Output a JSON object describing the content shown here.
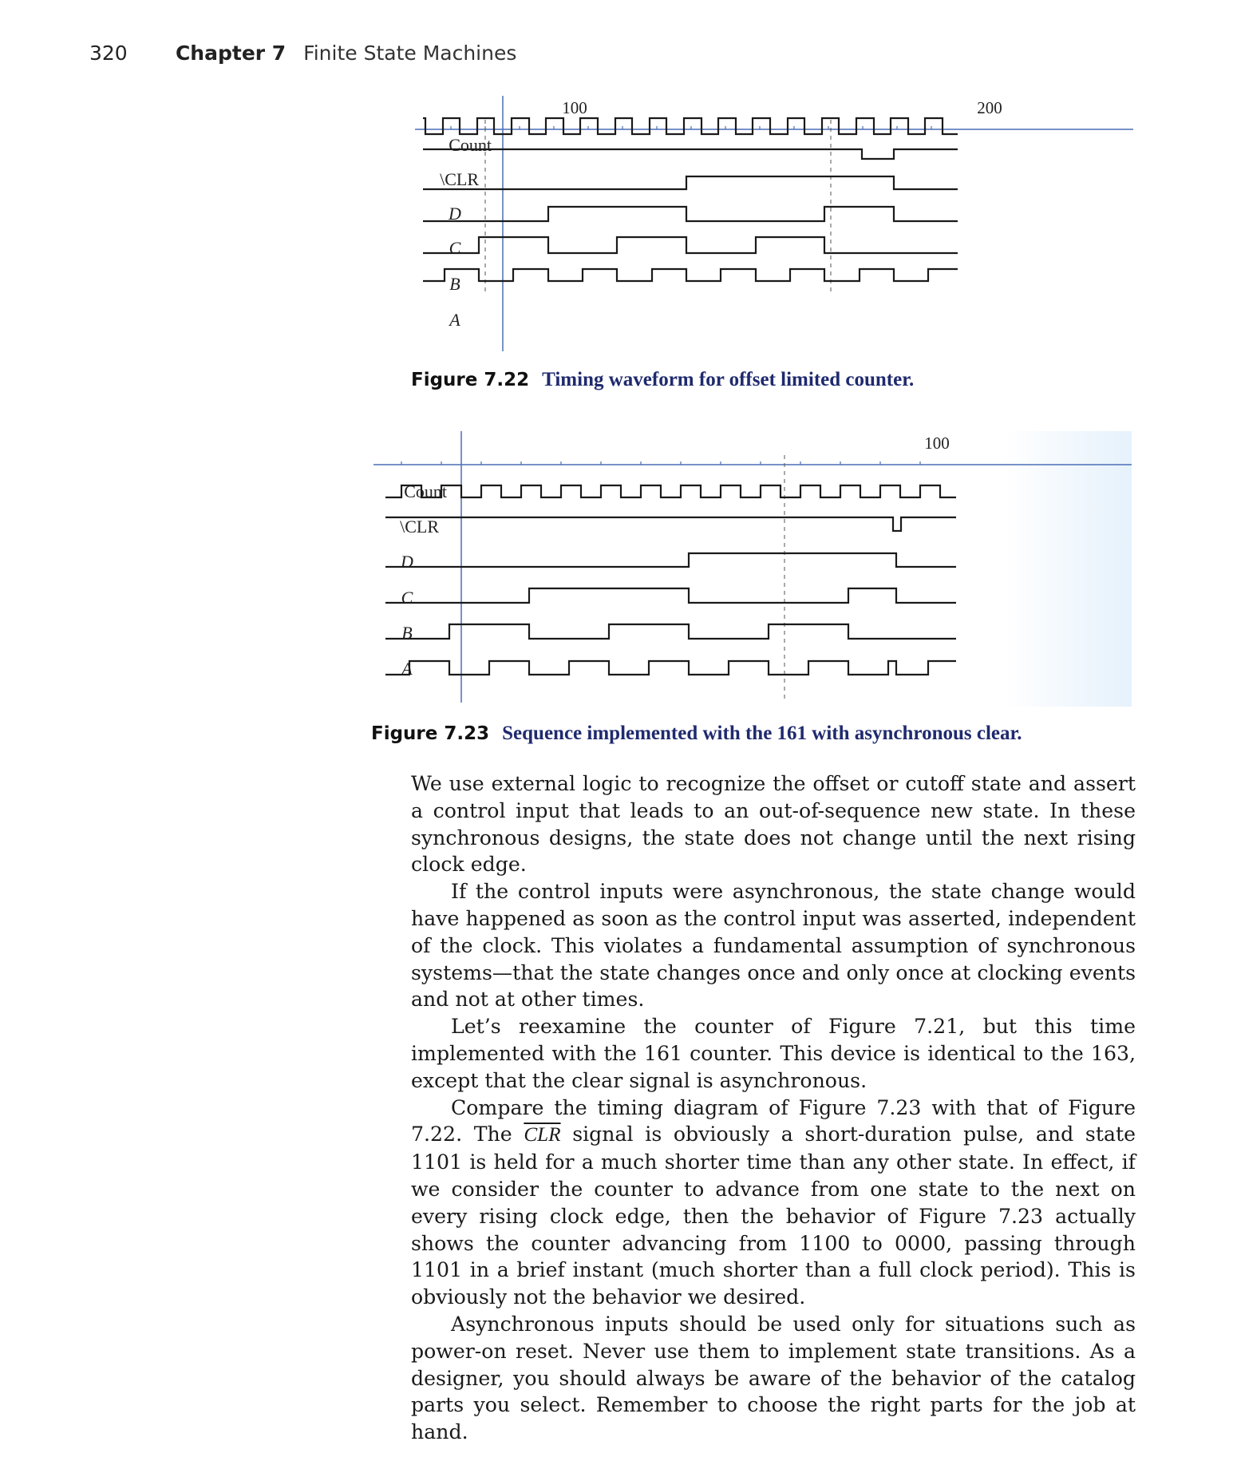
{
  "running_head": {
    "page_number": "320",
    "chapter_label": "Chapter 7",
    "chapter_title": "Finite State Machines"
  },
  "figures": [
    {
      "number": "Figure 7.22",
      "caption": "Timing waveform for offset limited counter.",
      "tick_labels": [
        "100",
        "200"
      ],
      "signals": [
        "Count",
        "\\CLR",
        "D",
        "C",
        "B",
        "A"
      ]
    },
    {
      "number": "Figure 7.23",
      "caption": "Sequence implemented with the 161 with asynchronous clear.",
      "tick_labels": [
        "100"
      ],
      "signals": [
        "Count",
        "\\CLR",
        "D",
        "C",
        "B",
        "A"
      ]
    }
  ],
  "paragraphs": [
    {
      "indent": false,
      "text": "We use external logic to recognize the offset or cutoff state and assert a control input that leads to an out-of-sequence new state. In these synchronous designs, the state does not change until the next rising clock edge."
    },
    {
      "indent": true,
      "text": "If the control inputs were asynchronous, the state change would have happened as soon as the control input was asserted, independent of the clock. This violates a fundamental assumption of synchronous systems—that the state changes once and only once at clocking events and not at other times."
    },
    {
      "indent": true,
      "text": "Let’s reexamine the counter of Figure 7.21, but this time implemented with the 161 counter. This device is identical to the 163, except that the clear signal is asynchronous."
    },
    {
      "indent": true,
      "before": "Compare the timing diagram of Figure 7.23 with that of Figure 7.22. The ",
      "overline": "CLR",
      "after": " signal is obviously a short-duration pulse, and state 1101 is held for a much shorter time than any other state. In effect, if we consider the counter to advance from one state to the next on every rising clock edge, then the behavior of Figure 7.23 actually shows the counter advancing from 1100 to 0000, passing through 1101 in a brief instant (much shorter than a full clock period). This is obviously not the behavior we desired."
    },
    {
      "indent": true,
      "text": "Asynchronous inputs should be used only for situations such as power-on reset. Never use them to implement state transitions. As a designer, you should always be aware of the behavior of the catalog parts you select. Remember to choose the right parts for the job at hand."
    }
  ],
  "colors": {
    "axis": "#4a6fb5",
    "waveform": "#1a1a1a",
    "caption_text": "#1f2a6e"
  }
}
